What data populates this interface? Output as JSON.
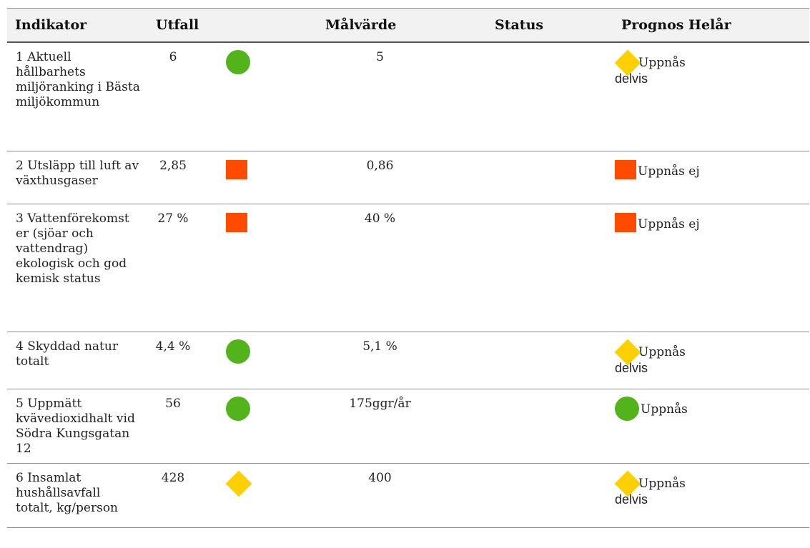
{
  "table": {
    "headers": {
      "indikator": "Indikator",
      "utfall": "Utfall",
      "malvarde": "Målvärde",
      "status": "Status",
      "prognos": "Prognos Helår"
    },
    "rows": [
      {
        "indikator": "1 Aktuell hållbarhets miljöranking i Bästa miljökommun",
        "utfall": "6",
        "status_symbol": "green-circle-icon",
        "malvarde": "5",
        "prognos_symbol": "yellow-diamond-icon",
        "prognos_line1": "Uppnås",
        "prognos_line2": "delvis"
      },
      {
        "indikator": "2 Utsläpp till luft av växthusgaser",
        "utfall": "2,85",
        "status_symbol": "red-square-icon",
        "malvarde": "0,86",
        "prognos_symbol": "red-square-icon",
        "prognos_line1": "Uppnås ej",
        "prognos_line2": ""
      },
      {
        "indikator": "3 Vattenförekomst er (sjöar och vattendrag) ekologisk och god kemisk status",
        "utfall": "27 %",
        "status_symbol": "red-square-icon",
        "malvarde": "40 %",
        "prognos_symbol": "red-square-icon",
        "prognos_line1": "Uppnås ej",
        "prognos_line2": ""
      },
      {
        "indikator": "4 Skyddad natur totalt",
        "utfall": "4,4 %",
        "status_symbol": "green-circle-icon",
        "malvarde": "5,1 %",
        "prognos_symbol": "yellow-diamond-icon",
        "prognos_line1": "Uppnås",
        "prognos_line2": "delvis"
      },
      {
        "indikator": "5 Uppmätt kvävedioxidhalt vid Södra Kungsgatan 12",
        "utfall": "56",
        "status_symbol": "green-circle-icon",
        "malvarde": "175ggr/år",
        "prognos_symbol": "green-circle-icon",
        "prognos_line1": "Uppnås",
        "prognos_line2": ""
      },
      {
        "indikator": "6 Insamlat hushållsavfall totalt, kg/person",
        "utfall": "428",
        "status_symbol": "yellow-diamond-icon",
        "malvarde": "400",
        "prognos_symbol": "yellow-diamond-icon",
        "prognos_line1": "Uppnås",
        "prognos_line2": "delvis"
      }
    ]
  },
  "colors": {
    "green": "#52b31a",
    "red": "#ff4b00",
    "yellow": "#ffd000",
    "header_bg": "#f2f2f2"
  }
}
